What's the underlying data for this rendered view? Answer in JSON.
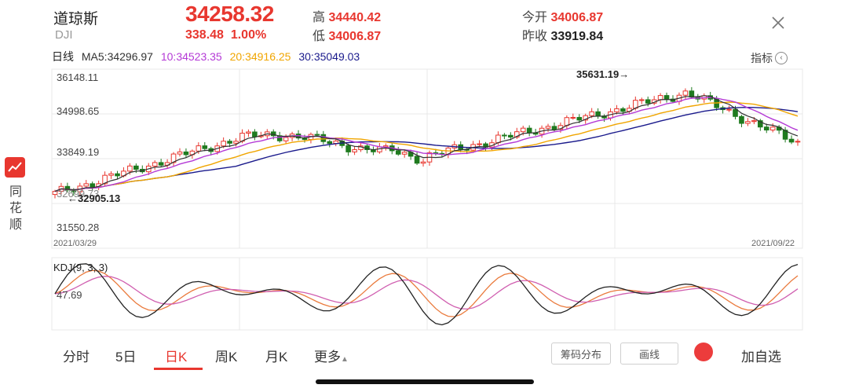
{
  "header": {
    "name": "道琼斯",
    "code": "DJI",
    "price": "34258.32",
    "change": "338.48",
    "change_pct": "1.00%",
    "high_label": "高",
    "high": "34440.42",
    "low_label": "低",
    "low": "34006.87",
    "open_label": "今开",
    "open": "34006.87",
    "prev_close_label": "昨收",
    "prev_close": "33919.84"
  },
  "ma_legend": {
    "period": "日线",
    "ma5": "MA5:34296.97",
    "ma10": "10:34523.35",
    "ma20": "20:34916.25",
    "ma30": "30:35049.03",
    "indicator_label": "指标",
    "colors": {
      "ma5": "#333333",
      "ma10": "#b43ad6",
      "ma20": "#f0a500",
      "ma30": "#1a1a8c",
      "up": "#e8372f",
      "down": "#1f7a1f"
    }
  },
  "kline": {
    "y_labels": [
      "36148.11",
      "34998.65",
      "33849.19",
      "32699.73",
      "31550.28"
    ],
    "max_label": "35631.19→",
    "min_label": "←32905.13",
    "start_date": "2021/03/29",
    "end_date": "2021/09/22"
  },
  "kdj": {
    "title": "KDJ(9, 3, 3)",
    "value_label": "47.69"
  },
  "sidebar": {
    "brand": "同花顺",
    "brand_chars": [
      "同",
      "花",
      "顺"
    ]
  },
  "tabs": {
    "items": [
      "分时",
      "5日",
      "日K",
      "周K",
      "月K",
      "更多"
    ],
    "active": "日K",
    "more_arrow": "▲",
    "chip_dist": "筹码分布",
    "draw_line": "画线",
    "add_watch": "加自选"
  },
  "chart_data": {
    "type": "candlestick",
    "x_range": [
      "2021/03/29",
      "2021/09/22"
    ],
    "y_range": [
      31550.28,
      36148.11
    ],
    "period_high": 35631.19,
    "period_low": 32905.13,
    "last_close": 34258.32,
    "ma_values": {
      "MA5": 34296.97,
      "MA10": 34523.35,
      "MA20": 34916.25,
      "MA30": 35049.03
    },
    "kdj_level": 47.69
  }
}
